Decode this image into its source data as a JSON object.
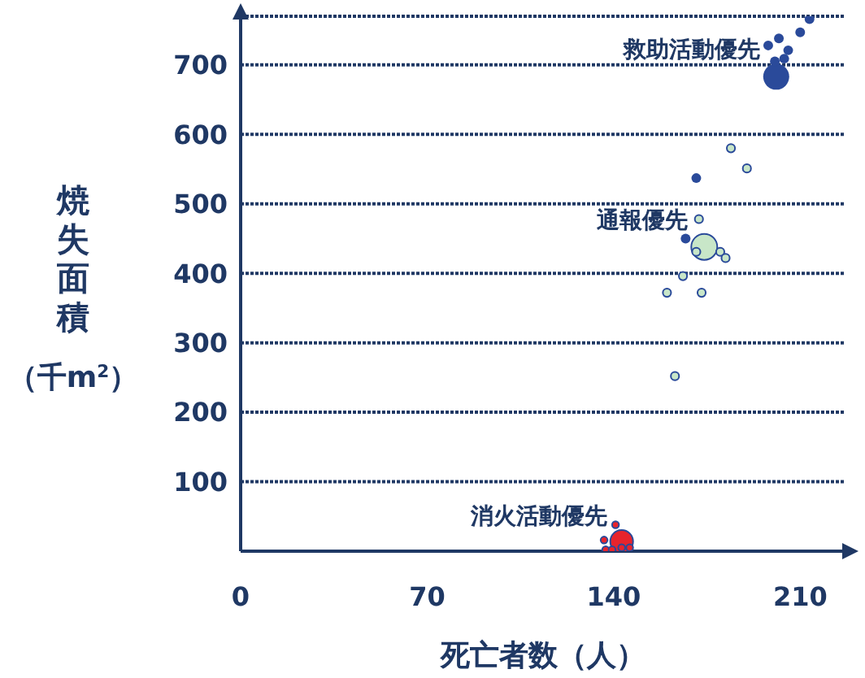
{
  "chart_data": {
    "type": "bubble",
    "xlabel": "死亡者数（人）",
    "ylabel": "焼失面積（千m$^{2}$）",
    "xlim": [
      0,
      227
    ],
    "xticks": [
      0,
      70,
      140,
      210
    ],
    "ylim": [
      0,
      770
    ],
    "yticks": [
      100,
      200,
      300,
      400,
      500,
      600,
      700
    ],
    "grid": "y",
    "legend": false,
    "series": [
      {
        "name": "救助活動優先",
        "color": "#2a4a9a",
        "x": [
          201,
          213.5,
          210,
          202,
          198,
          205.5,
          204,
          200.5,
          171,
          167
        ],
        "values": [
          683,
          766,
          747,
          738,
          728,
          721,
          709,
          705,
          537,
          450
        ],
        "sizes": [
          1,
          0.14,
          0.14,
          0.14,
          0.14,
          0.14,
          0.14,
          0.14,
          0.14,
          0.14
        ]
      },
      {
        "name": "通報優先",
        "color": "#c8e6c8",
        "x": [
          174,
          184,
          190,
          172,
          171,
          180,
          182,
          166,
          160,
          173,
          163
        ],
        "values": [
          438,
          580,
          551,
          478,
          431,
          431,
          422,
          396,
          372,
          372,
          252
        ],
        "sizes": [
          1,
          0.1,
          0.1,
          0.1,
          0.1,
          0.1,
          0.1,
          0.1,
          0.1,
          0.1,
          0.1
        ]
      },
      {
        "name": "消火活動優先",
        "color": "#e8242c",
        "x": [
          143,
          140.7,
          136.4,
          137,
          139.4,
          143,
          146
        ],
        "values": [
          14,
          38,
          16,
          2,
          2,
          5,
          5
        ],
        "sizes": [
          0.77,
          0.07,
          0.07,
          0.07,
          0.07,
          0.07,
          0.07
        ]
      }
    ]
  }
}
